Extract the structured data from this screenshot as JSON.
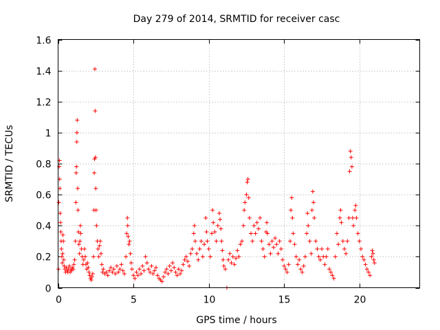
{
  "chart_data": {
    "type": "scatter",
    "title": "Day 279 of 2014, SRMTID for receiver casc",
    "xlabel": "GPS time / hours",
    "ylabel": "SRMTID / TECUs",
    "xlim": [
      0,
      24
    ],
    "ylim": [
      0,
      1.6
    ],
    "xticks": [
      0,
      5,
      10,
      15,
      20
    ],
    "xtick_labels": [
      "0",
      "5",
      "10",
      "15",
      "20"
    ],
    "yticks": [
      0,
      0.2,
      0.4,
      0.6,
      0.8,
      1,
      1.2,
      1.4,
      1.6
    ],
    "ytick_labels": [
      "0",
      "0.2",
      "0.4",
      "0.6",
      "0.8",
      "1",
      "1.2",
      "1.4",
      "1.6"
    ],
    "grid": true,
    "marker": "+",
    "color": "#ff0000",
    "series": [
      {
        "name": "SRMTID",
        "points": [
          [
            0.02,
            0.12
          ],
          [
            0.05,
            0.55
          ],
          [
            0.07,
            0.78
          ],
          [
            0.09,
            0.82
          ],
          [
            0.1,
            0.7
          ],
          [
            0.12,
            0.64
          ],
          [
            0.14,
            0.48
          ],
          [
            0.16,
            0.42
          ],
          [
            0.18,
            0.36
          ],
          [
            0.2,
            0.3
          ],
          [
            0.22,
            0.25
          ],
          [
            0.25,
            0.2
          ],
          [
            0.28,
            0.16
          ],
          [
            0.3,
            0.22
          ],
          [
            0.32,
            0.34
          ],
          [
            0.35,
            0.3
          ],
          [
            0.38,
            0.18
          ],
          [
            0.4,
            0.14
          ],
          [
            0.45,
            0.12
          ],
          [
            0.5,
            0.1
          ],
          [
            0.55,
            0.13
          ],
          [
            0.6,
            0.11
          ],
          [
            0.65,
            0.1
          ],
          [
            0.7,
            0.12
          ],
          [
            0.75,
            0.14
          ],
          [
            0.8,
            0.1
          ],
          [
            0.85,
            0.12
          ],
          [
            0.9,
            0.11
          ],
          [
            0.95,
            0.13
          ],
          [
            1.0,
            0.12
          ],
          [
            1.05,
            0.15
          ],
          [
            1.1,
            0.18
          ],
          [
            1.15,
            0.3
          ],
          [
            1.18,
            0.55
          ],
          [
            1.2,
            0.74
          ],
          [
            1.22,
            0.78
          ],
          [
            1.24,
            0.94
          ],
          [
            1.25,
            1.0
          ],
          [
            1.27,
            1.08
          ],
          [
            1.3,
            0.64
          ],
          [
            1.32,
            0.5
          ],
          [
            1.35,
            0.36
          ],
          [
            1.38,
            0.28
          ],
          [
            1.42,
            0.22
          ],
          [
            1.45,
            0.3
          ],
          [
            1.48,
            0.4
          ],
          [
            1.5,
            0.35
          ],
          [
            1.55,
            0.25
          ],
          [
            1.6,
            0.2
          ],
          [
            1.65,
            0.15
          ],
          [
            1.7,
            0.18
          ],
          [
            1.75,
            0.25
          ],
          [
            1.8,
            0.2
          ],
          [
            1.85,
            0.15
          ],
          [
            1.9,
            0.12
          ],
          [
            1.95,
            0.16
          ],
          [
            2.0,
            0.13
          ],
          [
            2.05,
            0.1
          ],
          [
            2.1,
            0.08
          ],
          [
            2.15,
            0.06
          ],
          [
            2.2,
            0.05
          ],
          [
            2.25,
            0.07
          ],
          [
            2.3,
            0.09
          ],
          [
            2.35,
            0.2
          ],
          [
            2.38,
            0.5
          ],
          [
            2.4,
            0.74
          ],
          [
            2.42,
            0.83
          ],
          [
            2.44,
            1.41
          ],
          [
            2.46,
            1.14
          ],
          [
            2.48,
            0.84
          ],
          [
            2.5,
            0.64
          ],
          [
            2.52,
            0.5
          ],
          [
            2.55,
            0.4
          ],
          [
            2.6,
            0.3
          ],
          [
            2.65,
            0.25
          ],
          [
            2.7,
            0.2
          ],
          [
            2.75,
            0.27
          ],
          [
            2.8,
            0.3
          ],
          [
            2.85,
            0.22
          ],
          [
            2.9,
            0.15
          ],
          [
            2.95,
            0.1
          ],
          [
            3.0,
            0.12
          ],
          [
            3.1,
            0.09
          ],
          [
            3.2,
            0.1
          ],
          [
            3.3,
            0.08
          ],
          [
            3.4,
            0.11
          ],
          [
            3.5,
            0.13
          ],
          [
            3.6,
            0.1
          ],
          [
            3.7,
            0.12
          ],
          [
            3.8,
            0.09
          ],
          [
            3.9,
            0.14
          ],
          [
            4.0,
            0.1
          ],
          [
            4.1,
            0.12
          ],
          [
            4.2,
            0.15
          ],
          [
            4.3,
            0.11
          ],
          [
            4.4,
            0.09
          ],
          [
            4.5,
            0.2
          ],
          [
            4.55,
            0.35
          ],
          [
            4.6,
            0.45
          ],
          [
            4.62,
            0.4
          ],
          [
            4.65,
            0.33
          ],
          [
            4.7,
            0.28
          ],
          [
            4.75,
            0.3
          ],
          [
            4.8,
            0.22
          ],
          [
            4.85,
            0.16
          ],
          [
            4.9,
            0.12
          ],
          [
            5.0,
            0.08
          ],
          [
            5.1,
            0.06
          ],
          [
            5.2,
            0.1
          ],
          [
            5.3,
            0.08
          ],
          [
            5.4,
            0.12
          ],
          [
            5.5,
            0.09
          ],
          [
            5.6,
            0.14
          ],
          [
            5.7,
            0.11
          ],
          [
            5.8,
            0.2
          ],
          [
            5.9,
            0.16
          ],
          [
            6.0,
            0.12
          ],
          [
            6.1,
            0.1
          ],
          [
            6.2,
            0.14
          ],
          [
            6.3,
            0.09
          ],
          [
            6.4,
            0.11
          ],
          [
            6.5,
            0.13
          ],
          [
            6.6,
            0.08
          ],
          [
            6.7,
            0.06
          ],
          [
            6.8,
            0.05
          ],
          [
            6.9,
            0.04
          ],
          [
            7.0,
            0.07
          ],
          [
            7.1,
            0.1
          ],
          [
            7.2,
            0.12
          ],
          [
            7.3,
            0.09
          ],
          [
            7.4,
            0.14
          ],
          [
            7.5,
            0.11
          ],
          [
            7.6,
            0.16
          ],
          [
            7.7,
            0.13
          ],
          [
            7.8,
            0.1
          ],
          [
            7.9,
            0.08
          ],
          [
            8.0,
            0.12
          ],
          [
            8.1,
            0.09
          ],
          [
            8.2,
            0.11
          ],
          [
            8.3,
            0.15
          ],
          [
            8.4,
            0.18
          ],
          [
            8.5,
            0.2
          ],
          [
            8.6,
            0.17
          ],
          [
            8.7,
            0.14
          ],
          [
            8.8,
            0.22
          ],
          [
            8.9,
            0.25
          ],
          [
            9.0,
            0.35
          ],
          [
            9.05,
            0.4
          ],
          [
            9.1,
            0.3
          ],
          [
            9.2,
            0.22
          ],
          [
            9.3,
            0.18
          ],
          [
            9.4,
            0.25
          ],
          [
            9.5,
            0.3
          ],
          [
            9.6,
            0.2
          ],
          [
            9.7,
            0.28
          ],
          [
            9.8,
            0.45
          ],
          [
            9.85,
            0.36
          ],
          [
            9.9,
            0.3
          ],
          [
            10.0,
            0.25
          ],
          [
            10.1,
            0.2
          ],
          [
            10.2,
            0.35
          ],
          [
            10.25,
            0.5
          ],
          [
            10.3,
            0.42
          ],
          [
            10.4,
            0.36
          ],
          [
            10.5,
            0.3
          ],
          [
            10.6,
            0.4
          ],
          [
            10.7,
            0.48
          ],
          [
            10.75,
            0.44
          ],
          [
            10.8,
            0.38
          ],
          [
            10.85,
            0.3
          ],
          [
            10.9,
            0.24
          ],
          [
            10.95,
            0.18
          ],
          [
            11.0,
            0.14
          ],
          [
            11.1,
            0.12
          ],
          [
            11.2,
            0.0
          ],
          [
            11.3,
            0.18
          ],
          [
            11.4,
            0.22
          ],
          [
            11.5,
            0.16
          ],
          [
            11.6,
            0.2
          ],
          [
            11.7,
            0.15
          ],
          [
            11.8,
            0.19
          ],
          [
            11.9,
            0.24
          ],
          [
            12.0,
            0.2
          ],
          [
            12.1,
            0.28
          ],
          [
            12.2,
            0.3
          ],
          [
            12.3,
            0.4
          ],
          [
            12.35,
            0.5
          ],
          [
            12.4,
            0.55
          ],
          [
            12.5,
            0.6
          ],
          [
            12.55,
            0.68
          ],
          [
            12.6,
            0.7
          ],
          [
            12.65,
            0.58
          ],
          [
            12.7,
            0.45
          ],
          [
            12.8,
            0.35
          ],
          [
            12.9,
            0.3
          ],
          [
            13.0,
            0.4
          ],
          [
            13.1,
            0.35
          ],
          [
            13.2,
            0.42
          ],
          [
            13.3,
            0.38
          ],
          [
            13.4,
            0.45
          ],
          [
            13.5,
            0.3
          ],
          [
            13.6,
            0.25
          ],
          [
            13.7,
            0.2
          ],
          [
            13.8,
            0.36
          ],
          [
            13.85,
            0.42
          ],
          [
            13.9,
            0.35
          ],
          [
            14.0,
            0.28
          ],
          [
            14.1,
            0.22
          ],
          [
            14.2,
            0.3
          ],
          [
            14.3,
            0.26
          ],
          [
            14.4,
            0.32
          ],
          [
            14.5,
            0.28
          ],
          [
            14.6,
            0.22
          ],
          [
            14.7,
            0.3
          ],
          [
            14.8,
            0.25
          ],
          [
            14.9,
            0.18
          ],
          [
            15.0,
            0.14
          ],
          [
            15.1,
            0.12
          ],
          [
            15.2,
            0.1
          ],
          [
            15.3,
            0.15
          ],
          [
            15.4,
            0.3
          ],
          [
            15.45,
            0.5
          ],
          [
            15.5,
            0.58
          ],
          [
            15.55,
            0.45
          ],
          [
            15.6,
            0.35
          ],
          [
            15.7,
            0.28
          ],
          [
            15.8,
            0.2
          ],
          [
            15.9,
            0.15
          ],
          [
            16.0,
            0.18
          ],
          [
            16.1,
            0.12
          ],
          [
            16.2,
            0.1
          ],
          [
            16.3,
            0.14
          ],
          [
            16.4,
            0.2
          ],
          [
            16.5,
            0.35
          ],
          [
            16.55,
            0.48
          ],
          [
            16.6,
            0.4
          ],
          [
            16.7,
            0.3
          ],
          [
            16.8,
            0.22
          ],
          [
            16.85,
            0.5
          ],
          [
            16.9,
            0.62
          ],
          [
            16.95,
            0.55
          ],
          [
            17.0,
            0.45
          ],
          [
            17.1,
            0.3
          ],
          [
            17.2,
            0.25
          ],
          [
            17.3,
            0.2
          ],
          [
            17.4,
            0.18
          ],
          [
            17.5,
            0.25
          ],
          [
            17.6,
            0.2
          ],
          [
            17.7,
            0.15
          ],
          [
            17.8,
            0.2
          ],
          [
            17.9,
            0.25
          ],
          [
            18.0,
            0.12
          ],
          [
            18.1,
            0.1
          ],
          [
            18.2,
            0.08
          ],
          [
            18.3,
            0.06
          ],
          [
            18.4,
            0.2
          ],
          [
            18.5,
            0.35
          ],
          [
            18.6,
            0.28
          ],
          [
            18.7,
            0.45
          ],
          [
            18.75,
            0.5
          ],
          [
            18.8,
            0.42
          ],
          [
            18.9,
            0.3
          ],
          [
            19.0,
            0.25
          ],
          [
            19.1,
            0.22
          ],
          [
            19.2,
            0.3
          ],
          [
            19.3,
            0.45
          ],
          [
            19.35,
            0.75
          ],
          [
            19.4,
            0.88
          ],
          [
            19.45,
            0.84
          ],
          [
            19.5,
            0.78
          ],
          [
            19.55,
            0.45
          ],
          [
            19.6,
            0.4
          ],
          [
            19.7,
            0.5
          ],
          [
            19.75,
            0.53
          ],
          [
            19.8,
            0.45
          ],
          [
            19.9,
            0.35
          ],
          [
            20.0,
            0.3
          ],
          [
            20.1,
            0.25
          ],
          [
            20.2,
            0.2
          ],
          [
            20.3,
            0.18
          ],
          [
            20.4,
            0.15
          ],
          [
            20.5,
            0.12
          ],
          [
            20.6,
            0.1
          ],
          [
            20.7,
            0.08
          ],
          [
            20.8,
            0.2
          ],
          [
            20.85,
            0.24
          ],
          [
            20.9,
            0.22
          ],
          [
            20.95,
            0.18
          ],
          [
            21.0,
            0.16
          ]
        ]
      }
    ]
  }
}
